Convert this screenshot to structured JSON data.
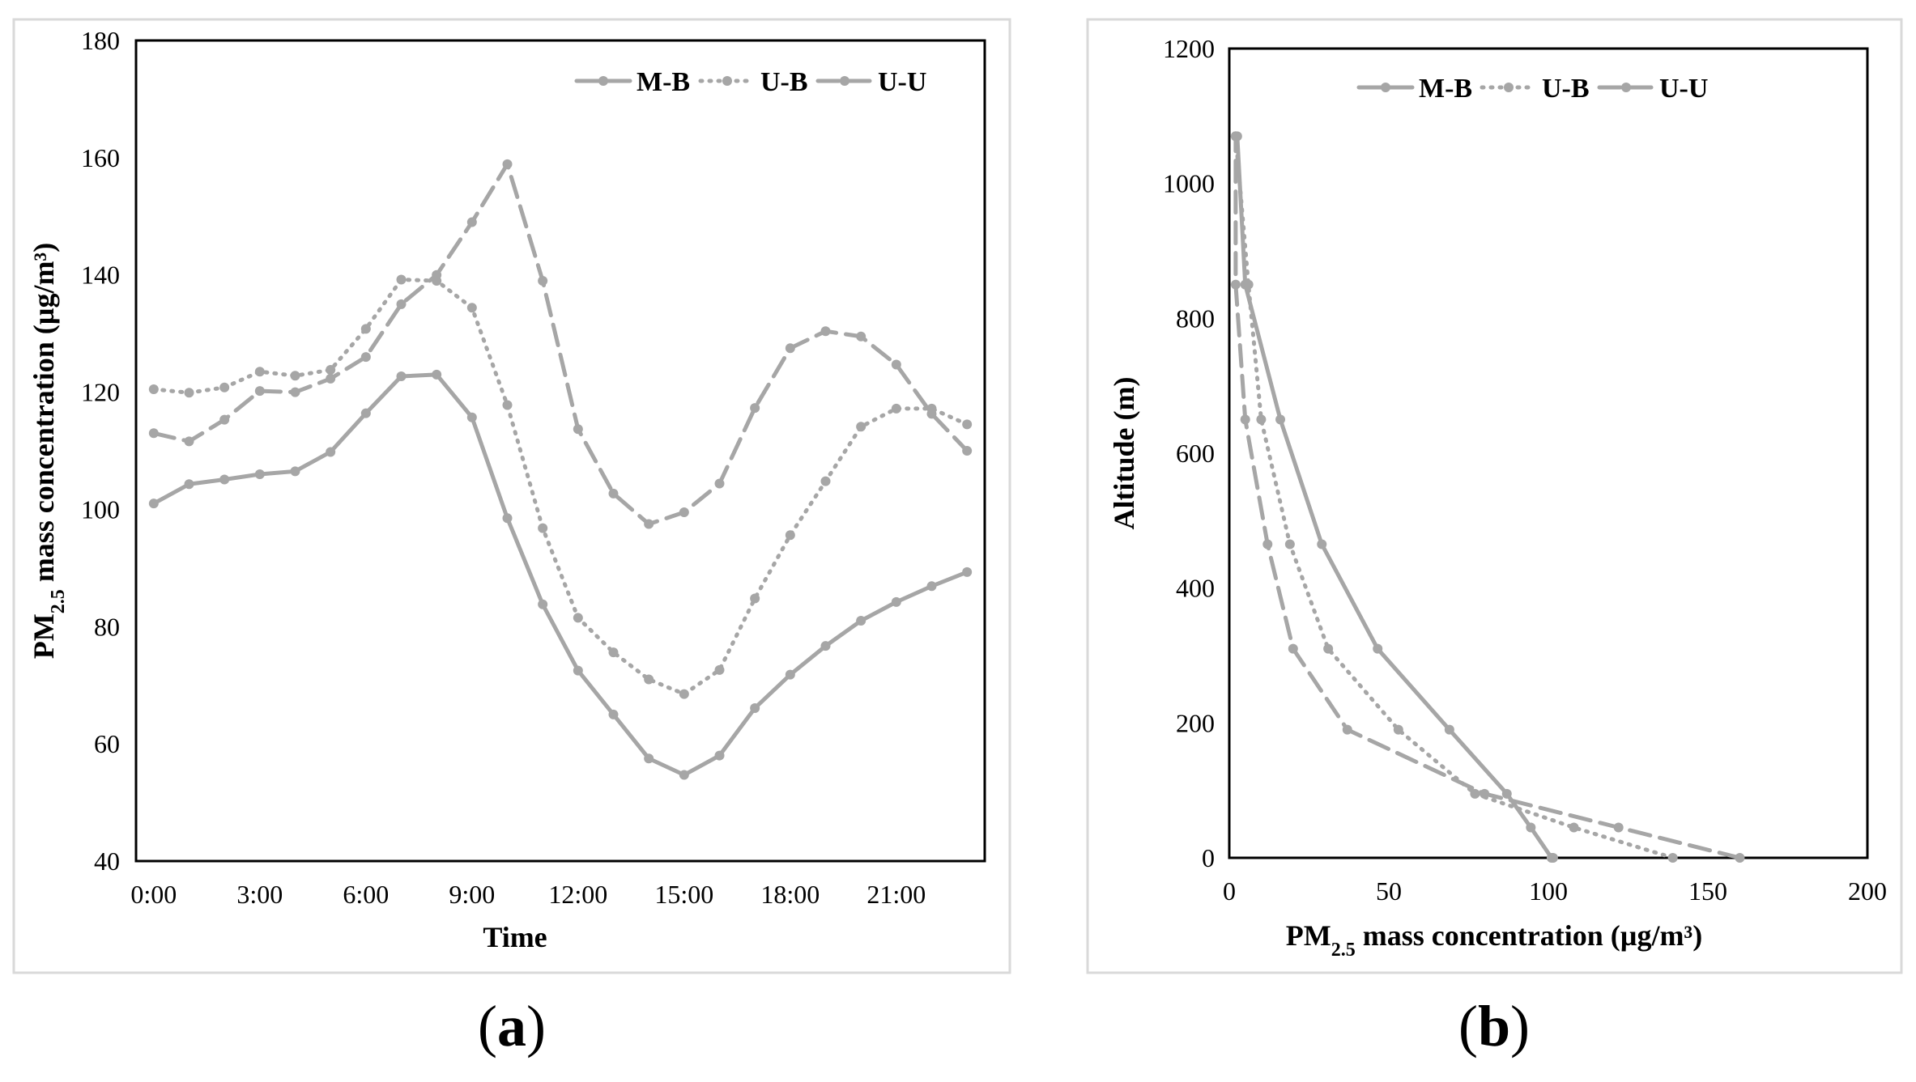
{
  "chart_data": [
    {
      "type": "line",
      "panel_label": "a",
      "xlabel": "Time",
      "ylabel_main": "PM",
      "ylabel_sub": "2.5",
      "ylabel_rest": " mass concentration (µg/m³)",
      "ylim": [
        40,
        180
      ],
      "yticks": [
        40,
        60,
        80,
        100,
        120,
        140,
        160,
        180
      ],
      "xlim": [
        -0.5,
        23.5
      ],
      "xticks": [
        0,
        3,
        6,
        9,
        12,
        15,
        18,
        21
      ],
      "xtick_labels": [
        "0:00",
        "3:00",
        "6:00",
        "9:00",
        "12:00",
        "15:00",
        "18:00",
        "21:00"
      ],
      "legend_position": "top-right",
      "x": [
        0,
        1,
        2,
        3,
        4,
        5,
        6,
        7,
        8,
        9,
        10,
        11,
        12,
        13,
        14,
        15,
        16,
        17,
        18,
        19,
        20,
        21,
        22,
        23
      ],
      "series": [
        {
          "name": "M-B",
          "style": "solid",
          "values": [
            101,
            104.3,
            105.1,
            106,
            106.5,
            109.8,
            116.4,
            122.7,
            123,
            115.7,
            98.5,
            83.8,
            72.5,
            65,
            57.5,
            54.7,
            58,
            66.1,
            71.8,
            76.7,
            81,
            84.2,
            86.9,
            89.3
          ]
        },
        {
          "name": "U-B",
          "style": "dotted",
          "values": [
            120.5,
            119.9,
            120.8,
            123.5,
            122.8,
            123.8,
            130.8,
            139.2,
            139,
            134.4,
            117.8,
            96.8,
            81.5,
            75.6,
            71,
            68.5,
            72.6,
            84.8,
            95.6,
            104.8,
            114.1,
            117.2,
            117.2,
            114.5
          ]
        },
        {
          "name": "U-U",
          "style": "dashed",
          "values": [
            113,
            111.6,
            115.3,
            120.2,
            120,
            122.3,
            126,
            135,
            140,
            149,
            158.9,
            139,
            113.7,
            102.7,
            97.5,
            99.5,
            104.4,
            117.3,
            127.5,
            130.4,
            129.5,
            124.7,
            116.3,
            110
          ]
        }
      ]
    },
    {
      "type": "line",
      "panel_label": "b",
      "xlabel_main": "PM",
      "xlabel_sub": "2.5",
      "xlabel_rest": " mass concentration (µg/m³)",
      "ylabel": "Altitude (m)",
      "xlim": [
        0,
        200
      ],
      "xticks": [
        0,
        50,
        100,
        150,
        200
      ],
      "ylim": [
        0,
        1200
      ],
      "yticks": [
        0,
        200,
        400,
        600,
        800,
        1000,
        1200
      ],
      "legend_position": "top-left",
      "series": [
        {
          "name": "M-B",
          "style": "solid",
          "x": [
            101.5,
            101,
            94.5,
            87,
            69,
            46.5,
            29,
            16,
            5,
            2.5
          ],
          "y": [
            0,
            0,
            45,
            95,
            190,
            310,
            465,
            650,
            850,
            1070
          ]
        },
        {
          "name": "U-B",
          "style": "dotted",
          "x": [
            139,
            108,
            77,
            53,
            31,
            19,
            10,
            6,
            2,
            2
          ],
          "y": [
            0,
            45,
            95,
            190,
            310,
            465,
            650,
            850,
            1070,
            1070
          ]
        },
        {
          "name": "U-U",
          "style": "dashed",
          "x": [
            160,
            122,
            80,
            37,
            20,
            12,
            5,
            2,
            2
          ],
          "y": [
            0,
            45,
            95,
            190,
            310,
            465,
            650,
            850,
            1070
          ]
        }
      ]
    }
  ]
}
